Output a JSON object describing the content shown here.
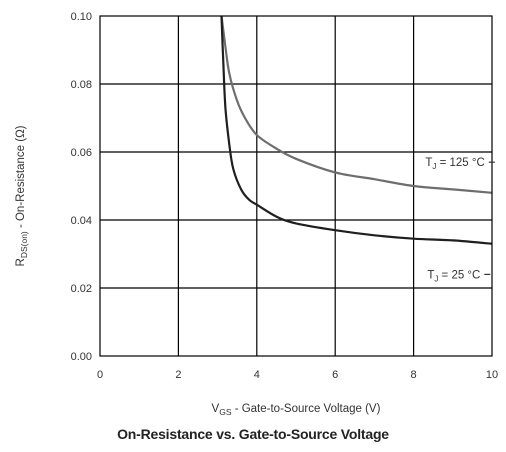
{
  "chart_data": {
    "type": "line",
    "title": "On-Resistance vs. Gate-to-Source Voltage",
    "xlabel": {
      "symbol": "V",
      "subscript": "GS",
      "text": " - Gate-to-Source Voltage (V)"
    },
    "ylabel": {
      "symbol": "R",
      "subscript": "DS(on)",
      "text": " - On-Resistance (Ω)"
    },
    "xlim": [
      0,
      10
    ],
    "ylim": [
      0,
      0.1
    ],
    "xticks": [
      0,
      2,
      4,
      6,
      8,
      10
    ],
    "xtick_labels": [
      "0",
      "2",
      "4",
      "6",
      "8",
      "10"
    ],
    "yticks": [
      0,
      0.02,
      0.04,
      0.06,
      0.08,
      0.1
    ],
    "ytick_labels": [
      "0.00",
      "0.02",
      "0.04",
      "0.06",
      "0.08",
      "0.10"
    ],
    "grid": true,
    "series": [
      {
        "name": "TJ = 125 °C",
        "label_prefix": "T",
        "label_sub": "J",
        "label_rest": " = 125 °C",
        "color": "#6e6e6e",
        "x": [
          3.1,
          3.2,
          3.3,
          3.5,
          3.7,
          4.0,
          4.5,
          5.0,
          6.0,
          7.0,
          8.0,
          9.0,
          10.0
        ],
        "y": [
          0.1,
          0.091,
          0.083,
          0.075,
          0.07,
          0.065,
          0.061,
          0.058,
          0.054,
          0.052,
          0.05,
          0.049,
          0.048
        ]
      },
      {
        "name": "TJ = 25 °C",
        "label_prefix": "T",
        "label_sub": "J",
        "label_rest": " = 25 °C",
        "color": "#1f1f1f",
        "x": [
          3.1,
          3.15,
          3.2,
          3.3,
          3.4,
          3.6,
          3.8,
          4.0,
          4.5,
          5.0,
          6.0,
          7.0,
          8.0,
          9.0,
          10.0
        ],
        "y": [
          0.1,
          0.085,
          0.073,
          0.062,
          0.055,
          0.049,
          0.046,
          0.0445,
          0.041,
          0.039,
          0.037,
          0.0355,
          0.0345,
          0.034,
          0.033
        ]
      }
    ],
    "annotations": [
      {
        "series": 0,
        "at": [
          8.3,
          0.057
        ]
      },
      {
        "series": 1,
        "at": [
          8.35,
          0.024
        ]
      }
    ]
  }
}
